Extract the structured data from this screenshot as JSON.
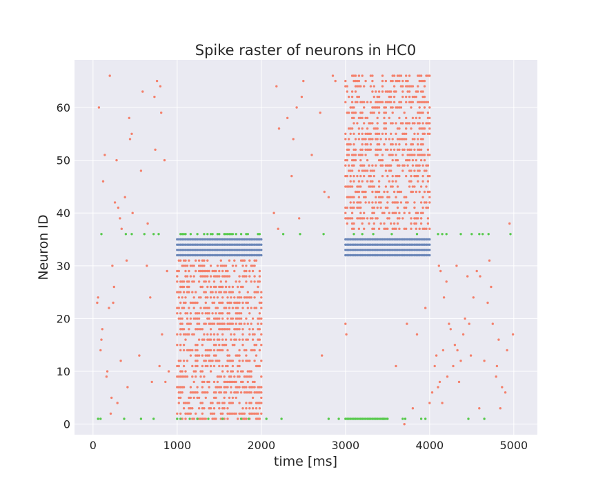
{
  "chart_data": {
    "type": "scatter",
    "title": "Spike raster of neurons in HC0",
    "xlabel": "time [ms]",
    "ylabel": "Neuron ID",
    "xlim": [
      -220,
      5280
    ],
    "ylim": [
      -2,
      69
    ],
    "xticks": [
      0,
      1000,
      2000,
      3000,
      4000,
      5000
    ],
    "yticks": [
      0,
      10,
      20,
      30,
      40,
      50,
      60
    ],
    "grid": true,
    "legend": "none",
    "colors": {
      "background": "#eaeaf2",
      "grid": "#ffffff",
      "excitatory": "#f4806b",
      "inhibitory": "#6a86b8",
      "input": "#56c94b"
    },
    "series": [
      {
        "color": "#f4806b",
        "points": [
          [
            50,
            23
          ],
          [
            60,
            24
          ],
          [
            70,
            60
          ],
          [
            90,
            14
          ],
          [
            100,
            16
          ],
          [
            110,
            18
          ],
          [
            120,
            46
          ],
          [
            140,
            51
          ],
          [
            160,
            9
          ],
          [
            170,
            10
          ],
          [
            190,
            22
          ],
          [
            200,
            66
          ],
          [
            210,
            2
          ],
          [
            220,
            5
          ],
          [
            230,
            30
          ],
          [
            240,
            23
          ],
          [
            250,
            26
          ],
          [
            260,
            42
          ],
          [
            280,
            50
          ],
          [
            290,
            4
          ],
          [
            300,
            41
          ],
          [
            320,
            39
          ],
          [
            330,
            12
          ],
          [
            340,
            37
          ],
          [
            380,
            43
          ],
          [
            400,
            31
          ],
          [
            410,
            7
          ],
          [
            430,
            58
          ],
          [
            440,
            54
          ],
          [
            460,
            55
          ],
          [
            470,
            40
          ],
          [
            550,
            13
          ],
          [
            570,
            48
          ],
          [
            590,
            63
          ],
          [
            640,
            30
          ],
          [
            650,
            38
          ],
          [
            680,
            24
          ],
          [
            700,
            8
          ],
          [
            730,
            62
          ],
          [
            740,
            52
          ],
          [
            760,
            65
          ],
          [
            790,
            11
          ],
          [
            800,
            64
          ],
          [
            810,
            59
          ],
          [
            820,
            17
          ],
          [
            850,
            50
          ],
          [
            860,
            8
          ],
          [
            880,
            29
          ],
          [
            900,
            10
          ],
          [
            2150,
            40
          ],
          [
            2180,
            64
          ],
          [
            2200,
            37
          ],
          [
            2210,
            56
          ],
          [
            2310,
            58
          ],
          [
            2360,
            47
          ],
          [
            2380,
            54
          ],
          [
            2420,
            60
          ],
          [
            2450,
            39
          ],
          [
            2480,
            62
          ],
          [
            2500,
            65
          ],
          [
            2600,
            51
          ],
          [
            2700,
            59
          ],
          [
            2720,
            13
          ],
          [
            2750,
            44
          ],
          [
            2800,
            43
          ],
          [
            2850,
            66
          ],
          [
            2880,
            65
          ],
          [
            3000,
            19
          ],
          [
            3010,
            17
          ],
          [
            3600,
            11
          ],
          [
            3700,
            0
          ],
          [
            3730,
            19
          ],
          [
            3800,
            3
          ],
          [
            3850,
            17
          ],
          [
            3900,
            39
          ],
          [
            3950,
            22
          ],
          [
            4000,
            4
          ],
          [
            4030,
            6
          ],
          [
            4060,
            11
          ],
          [
            4080,
            13
          ],
          [
            4100,
            7
          ],
          [
            4110,
            30
          ],
          [
            4120,
            8
          ],
          [
            4130,
            29
          ],
          [
            4150,
            4
          ],
          [
            4160,
            14
          ],
          [
            4170,
            24
          ],
          [
            4200,
            27
          ],
          [
            4210,
            9
          ],
          [
            4230,
            19
          ],
          [
            4250,
            18
          ],
          [
            4280,
            11
          ],
          [
            4300,
            15
          ],
          [
            4320,
            30
          ],
          [
            4330,
            14
          ],
          [
            4350,
            8
          ],
          [
            4370,
            12
          ],
          [
            4400,
            17
          ],
          [
            4420,
            20
          ],
          [
            4450,
            28
          ],
          [
            4470,
            19
          ],
          [
            4490,
            13
          ],
          [
            4520,
            24
          ],
          [
            4560,
            29
          ],
          [
            4590,
            3
          ],
          [
            4600,
            28
          ],
          [
            4650,
            12
          ],
          [
            4690,
            23
          ],
          [
            4710,
            31
          ],
          [
            4730,
            26
          ],
          [
            4750,
            19
          ],
          [
            4790,
            9
          ],
          [
            4800,
            11
          ],
          [
            4820,
            16
          ],
          [
            4840,
            3
          ],
          [
            4860,
            7
          ],
          [
            4900,
            6
          ],
          [
            4920,
            14
          ],
          [
            4950,
            38
          ],
          [
            4990,
            17
          ]
        ]
      },
      {
        "color": "#f4806b",
        "block": {
          "x_from": 1000,
          "x_to": 2000,
          "step_ms": 20,
          "ids_from": 1,
          "ids_to": 31,
          "density": 0.45
        }
      },
      {
        "color": "#f4806b",
        "block": {
          "x_from": 3000,
          "x_to": 4000,
          "step_ms": 20,
          "ids_from": 37,
          "ids_to": 66,
          "density": 0.45
        }
      },
      {
        "color": "#6a86b8",
        "block": {
          "x_from": 1000,
          "x_to": 2000,
          "step_ms": 20,
          "ids_from": 32,
          "ids_to": 35,
          "density": 1.0
        }
      },
      {
        "color": "#6a86b8",
        "block": {
          "x_from": 3000,
          "x_to": 4000,
          "step_ms": 20,
          "ids_from": 32,
          "ids_to": 35,
          "density": 1.0
        }
      },
      {
        "color": "#56c94b",
        "points": [
          [
            60,
            1
          ],
          [
            90,
            1
          ],
          [
            100,
            36
          ],
          [
            370,
            1
          ],
          [
            390,
            36
          ],
          [
            460,
            36
          ],
          [
            570,
            1
          ],
          [
            610,
            36
          ],
          [
            720,
            36
          ],
          [
            720,
            1
          ],
          [
            780,
            36
          ],
          [
            1000,
            1
          ],
          [
            1040,
            1
          ],
          [
            1150,
            1
          ],
          [
            1240,
            1
          ],
          [
            1370,
            1
          ],
          [
            1540,
            1
          ],
          [
            1760,
            1
          ],
          [
            1850,
            1
          ],
          [
            2060,
            1
          ],
          [
            2240,
            1
          ],
          [
            2260,
            36
          ],
          [
            2460,
            36
          ],
          [
            2740,
            36
          ],
          [
            2800,
            1
          ],
          [
            2920,
            1
          ],
          [
            3100,
            36
          ],
          [
            3200,
            36
          ],
          [
            3330,
            36
          ],
          [
            3450,
            1
          ],
          [
            3550,
            36
          ],
          [
            3680,
            1
          ],
          [
            3710,
            1
          ],
          [
            3850,
            36
          ],
          [
            3900,
            1
          ],
          [
            3950,
            1
          ],
          [
            4100,
            36
          ],
          [
            4150,
            36
          ],
          [
            4200,
            36
          ],
          [
            4370,
            36
          ],
          [
            4460,
            1
          ],
          [
            4500,
            36
          ],
          [
            4590,
            36
          ],
          [
            4630,
            36
          ],
          [
            4650,
            1
          ],
          [
            4700,
            36
          ],
          [
            4960,
            36
          ]
        ]
      },
      {
        "color": "#56c94b",
        "block": {
          "x_from": 1000,
          "x_to": 2000,
          "step_ms": 20,
          "ids_from": 36,
          "ids_to": 36,
          "density": 0.45
        }
      },
      {
        "color": "#56c94b",
        "block": {
          "x_from": 3000,
          "x_to": 3500,
          "step_ms": 20,
          "ids_from": 1,
          "ids_to": 1,
          "density": 1.0
        }
      }
    ]
  }
}
